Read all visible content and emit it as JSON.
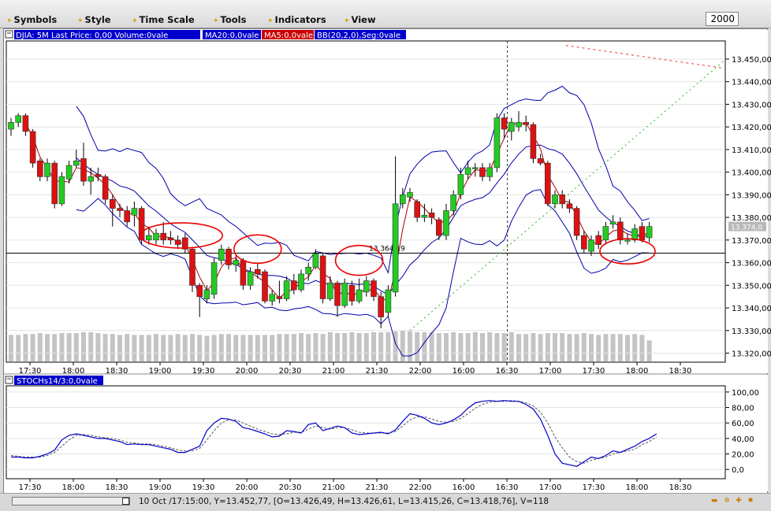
{
  "toolbar": {
    "menus": [
      "Symbols",
      "Style",
      "Time Scale",
      "Tools",
      "Indicators",
      "View"
    ],
    "zoom_value": "2000"
  },
  "price_panel": {
    "legend": [
      {
        "text": "DJIA: 5M Last Price: 0,00 Volume:0vale",
        "color": "#0000cc",
        "bg": "#0000cc"
      },
      {
        "text": "MA20:0,0vale",
        "color": "#0000cc",
        "bg": "#0000cc"
      },
      {
        "text": "MA5:0,0vale",
        "color": "#cc0000",
        "bg": "#cc0000"
      },
      {
        "text": "BB(20,2,0),Seg:0vale",
        "color": "#0000cc",
        "bg": "#0000cc"
      }
    ],
    "level_label": "13.364,19",
    "last_price_tag": "13.374,0"
  },
  "stoch_panel": {
    "legend": "STOCHs14/3:0,0vale"
  },
  "status": {
    "text": "10 Oct /17:15:00, Y=13.452,77, [O=13.426,49, H=13.426,61, L=13.415,26, C=13.418,76], V=118"
  },
  "colors": {
    "up": "#22cc22",
    "down": "#dd1111",
    "bollinger": "#0000aa",
    "ma_fast": "#aa0000",
    "stoch_k": "#0000cc",
    "stoch_d": "#555555",
    "volume": "#c4c4c4",
    "annotation": "#ee0000"
  },
  "chart_data": [
    {
      "type": "candlestick",
      "title": "DJIA: 5M",
      "x_tick_labels": [
        "17:30",
        "18:00",
        "18:30",
        "19:00",
        "19:30",
        "20:00",
        "20:30",
        "21:00",
        "21:30",
        "22:00",
        "16:00",
        "16:30",
        "17:00",
        "17:30",
        "18:00",
        "18:30"
      ],
      "y_tick_labels": [
        "13.450,00",
        "13.440,00",
        "13.430,00",
        "13.420,00",
        "13.410,00",
        "13.400,00",
        "13.390,00",
        "13.380,00",
        "13.370,00",
        "13.360,00",
        "13.350,00",
        "13.340,00",
        "13.330,00",
        "13.320,00"
      ],
      "ylim": [
        13316,
        13458
      ],
      "horizontal_level": 13364.19,
      "session_break_index": 68,
      "candles": [
        {
          "o": 13419,
          "c": 13422,
          "h": 13424,
          "l": 13416
        },
        {
          "o": 13422,
          "c": 13425,
          "h": 13426,
          "l": 13420
        },
        {
          "o": 13425,
          "c": 13418,
          "h": 13426,
          "l": 13416
        },
        {
          "o": 13418,
          "c": 13404,
          "h": 13419,
          "l": 13402
        },
        {
          "o": 13405,
          "c": 13398,
          "h": 13406,
          "l": 13396
        },
        {
          "o": 13398,
          "c": 13404,
          "h": 13406,
          "l": 13396
        },
        {
          "o": 13404,
          "c": 13386,
          "h": 13405,
          "l": 13384
        },
        {
          "o": 13386,
          "c": 13398,
          "h": 13400,
          "l": 13385
        },
        {
          "o": 13397,
          "c": 13403,
          "h": 13405,
          "l": 13395
        },
        {
          "o": 13403,
          "c": 13405,
          "h": 13410,
          "l": 13402
        },
        {
          "o": 13406,
          "c": 13396,
          "h": 13413,
          "l": 13394
        },
        {
          "o": 13396,
          "c": 13398,
          "h": 13402,
          "l": 13390
        },
        {
          "o": 13399,
          "c": 13398,
          "h": 13402,
          "l": 13396
        },
        {
          "o": 13398,
          "c": 13388,
          "h": 13399,
          "l": 13386
        },
        {
          "o": 13388,
          "c": 13384,
          "h": 13390,
          "l": 13376
        },
        {
          "o": 13384,
          "c": 13383,
          "h": 13386,
          "l": 13380
        },
        {
          "o": 13383,
          "c": 13378,
          "h": 13385,
          "l": 13376
        },
        {
          "o": 13381,
          "c": 13384,
          "h": 13387,
          "l": 13376
        },
        {
          "o": 13384,
          "c": 13370,
          "h": 13385,
          "l": 13368
        },
        {
          "o": 13370,
          "c": 13372,
          "h": 13376,
          "l": 13368
        },
        {
          "o": 13370,
          "c": 13373,
          "h": 13375,
          "l": 13368
        },
        {
          "o": 13373,
          "c": 13370,
          "h": 13378,
          "l": 13368
        },
        {
          "o": 13371,
          "c": 13370,
          "h": 13374,
          "l": 13368
        },
        {
          "o": 13370,
          "c": 13368,
          "h": 13372,
          "l": 13366
        },
        {
          "o": 13371,
          "c": 13366,
          "h": 13373,
          "l": 13364
        },
        {
          "o": 13366,
          "c": 13350,
          "h": 13367,
          "l": 13347
        },
        {
          "o": 13350,
          "c": 13345,
          "h": 13351,
          "l": 13336
        },
        {
          "o": 13344,
          "c": 13348,
          "h": 13350,
          "l": 13342
        },
        {
          "o": 13346,
          "c": 13360,
          "h": 13362,
          "l": 13344
        },
        {
          "o": 13361,
          "c": 13366,
          "h": 13368,
          "l": 13359
        },
        {
          "o": 13366,
          "c": 13359,
          "h": 13367,
          "l": 13357
        },
        {
          "o": 13359,
          "c": 13361,
          "h": 13363,
          "l": 13356
        },
        {
          "o": 13361,
          "c": 13350,
          "h": 13362,
          "l": 13348
        },
        {
          "o": 13350,
          "c": 13356,
          "h": 13358,
          "l": 13348
        },
        {
          "o": 13357,
          "c": 13355,
          "h": 13360,
          "l": 13353
        },
        {
          "o": 13356,
          "c": 13343,
          "h": 13357,
          "l": 13342
        },
        {
          "o": 13343,
          "c": 13346,
          "h": 13348,
          "l": 13341
        },
        {
          "o": 13345,
          "c": 13344,
          "h": 13352,
          "l": 13342
        },
        {
          "o": 13344,
          "c": 13352,
          "h": 13354,
          "l": 13343
        },
        {
          "o": 13352,
          "c": 13348,
          "h": 13355,
          "l": 13346
        },
        {
          "o": 13348,
          "c": 13355,
          "h": 13357,
          "l": 13347
        },
        {
          "o": 13355,
          "c": 13358,
          "h": 13360,
          "l": 13352
        },
        {
          "o": 13358,
          "c": 13364,
          "h": 13366,
          "l": 13357
        },
        {
          "o": 13363,
          "c": 13344,
          "h": 13364,
          "l": 13342
        },
        {
          "o": 13344,
          "c": 13351,
          "h": 13354,
          "l": 13343
        },
        {
          "o": 13351,
          "c": 13341,
          "h": 13352,
          "l": 13336
        },
        {
          "o": 13341,
          "c": 13351,
          "h": 13353,
          "l": 13340
        },
        {
          "o": 13350,
          "c": 13343,
          "h": 13352,
          "l": 13341
        },
        {
          "o": 13343,
          "c": 13348,
          "h": 13353,
          "l": 13342
        },
        {
          "o": 13347,
          "c": 13352,
          "h": 13354,
          "l": 13345
        },
        {
          "o": 13352,
          "c": 13345,
          "h": 13353,
          "l": 13343
        },
        {
          "o": 13345,
          "c": 13336,
          "h": 13347,
          "l": 13331
        },
        {
          "o": 13338,
          "c": 13348,
          "h": 13350,
          "l": 13336
        },
        {
          "o": 13347,
          "c": 13386,
          "h": 13407,
          "l": 13345
        },
        {
          "o": 13386,
          "c": 13390,
          "h": 13393,
          "l": 13384
        },
        {
          "o": 13389,
          "c": 13391,
          "h": 13393,
          "l": 13387
        },
        {
          "o": 13387,
          "c": 13380,
          "h": 13388,
          "l": 13378
        },
        {
          "o": 13380,
          "c": 13381,
          "h": 13386,
          "l": 13378
        },
        {
          "o": 13382,
          "c": 13380,
          "h": 13384,
          "l": 13377
        },
        {
          "o": 13379,
          "c": 13372,
          "h": 13380,
          "l": 13370
        },
        {
          "o": 13372,
          "c": 13383,
          "h": 13386,
          "l": 13370
        },
        {
          "o": 13383,
          "c": 13390,
          "h": 13392,
          "l": 13381
        },
        {
          "o": 13390,
          "c": 13399,
          "h": 13402,
          "l": 13388
        },
        {
          "o": 13399,
          "c": 13402,
          "h": 13405,
          "l": 13397
        },
        {
          "o": 13402,
          "c": 13402,
          "h": 13404,
          "l": 13398
        },
        {
          "o": 13402,
          "c": 13398,
          "h": 13404,
          "l": 13396
        },
        {
          "o": 13398,
          "c": 13402,
          "h": 13404,
          "l": 13396
        },
        {
          "o": 13402,
          "c": 13424,
          "h": 13426,
          "l": 13400
        },
        {
          "o": 13424,
          "c": 13419,
          "h": 13426,
          "l": 13415
        },
        {
          "o": 13418,
          "c": 13422,
          "h": 13424,
          "l": 13414
        },
        {
          "o": 13420,
          "c": 13422,
          "h": 13427,
          "l": 13418
        },
        {
          "o": 13422,
          "c": 13421,
          "h": 13425,
          "l": 13418
        },
        {
          "o": 13421,
          "c": 13406,
          "h": 13422,
          "l": 13404
        },
        {
          "o": 13406,
          "c": 13404,
          "h": 13408,
          "l": 13403
        },
        {
          "o": 13404,
          "c": 13386,
          "h": 13405,
          "l": 13385
        },
        {
          "o": 13386,
          "c": 13390,
          "h": 13392,
          "l": 13384
        },
        {
          "o": 13390,
          "c": 13386,
          "h": 13392,
          "l": 13384
        },
        {
          "o": 13386,
          "c": 13384,
          "h": 13388,
          "l": 13382
        },
        {
          "o": 13384,
          "c": 13372,
          "h": 13385,
          "l": 13370
        },
        {
          "o": 13372,
          "c": 13366,
          "h": 13374,
          "l": 13364
        },
        {
          "o": 13365,
          "c": 13370,
          "h": 13372,
          "l": 13363
        },
        {
          "o": 13372,
          "c": 13368,
          "h": 13374,
          "l": 13366
        },
        {
          "o": 13370,
          "c": 13376,
          "h": 13378,
          "l": 13368
        },
        {
          "o": 13377,
          "c": 13378,
          "h": 13381,
          "l": 13375
        },
        {
          "o": 13378,
          "c": 13370,
          "h": 13380,
          "l": 13368
        },
        {
          "o": 13370,
          "c": 13370,
          "h": 13373,
          "l": 13368
        },
        {
          "o": 13370,
          "c": 13375,
          "h": 13377,
          "l": 13369
        },
        {
          "o": 13376,
          "c": 13370,
          "h": 13378,
          "l": 13369
        },
        {
          "o": 13371,
          "c": 13376,
          "h": 13378,
          "l": 13369
        }
      ],
      "volume": [
        0.58,
        0.58,
        0.6,
        0.6,
        0.62,
        0.6,
        0.6,
        0.62,
        0.62,
        0.62,
        0.64,
        0.64,
        0.62,
        0.6,
        0.6,
        0.58,
        0.6,
        0.58,
        0.58,
        0.58,
        0.6,
        0.58,
        0.58,
        0.6,
        0.58,
        0.6,
        0.58,
        0.56,
        0.58,
        0.6,
        0.6,
        0.58,
        0.58,
        0.58,
        0.58,
        0.58,
        0.58,
        0.6,
        0.6,
        0.6,
        0.62,
        0.6,
        0.62,
        0.6,
        0.64,
        0.62,
        0.62,
        0.64,
        0.62,
        0.62,
        0.64,
        0.64,
        0.64,
        0.66,
        0.68,
        0.66,
        0.64,
        0.64,
        0.64,
        0.62,
        0.62,
        0.64,
        0.62,
        0.62,
        0.64,
        0.62,
        0.64,
        0.62,
        0.62,
        0.64,
        0.6,
        0.6,
        0.62,
        0.6,
        0.62,
        0.62,
        0.62,
        0.6,
        0.6,
        0.62,
        0.6,
        0.58,
        0.6,
        0.6,
        0.6,
        0.58,
        0.6,
        0.58,
        0.46
      ]
    },
    {
      "type": "line",
      "title": "STOCHs14/3",
      "x_tick_labels": [
        "17:30",
        "18:00",
        "18:30",
        "19:00",
        "19:30",
        "20:00",
        "20:30",
        "21:00",
        "21:30",
        "22:00",
        "16:00",
        "16:30",
        "17:00",
        "17:30",
        "18:00",
        "18:30"
      ],
      "y_tick_labels": [
        "100,00",
        "80,00",
        "60,00",
        "40,00",
        "20,00",
        "0,0"
      ],
      "ylim": [
        -12,
        108
      ],
      "series": [
        {
          "values": [
            16,
            16,
            15,
            15,
            17,
            20,
            25,
            38,
            44,
            46,
            44,
            42,
            40,
            40,
            38,
            36,
            32,
            33,
            32,
            32,
            30,
            28,
            26,
            22,
            22,
            26,
            30,
            50,
            60,
            66,
            65,
            62,
            54,
            52,
            49,
            46,
            42,
            43,
            50,
            49,
            47,
            58,
            60,
            50,
            53,
            56,
            54,
            47,
            45,
            46,
            47,
            48,
            46,
            51,
            62,
            72,
            70,
            66,
            60,
            58,
            60,
            64,
            70,
            79,
            86,
            88,
            89,
            88,
            89,
            88,
            88,
            84,
            78,
            65,
            44,
            20,
            8,
            6,
            4,
            10,
            16,
            14,
            18,
            24,
            22,
            26,
            30,
            36,
            40,
            46
          ]
        },
        {
          "values": [
            18,
            17,
            16,
            16,
            16,
            18,
            22,
            30,
            38,
            44,
            45,
            44,
            42,
            41,
            40,
            38,
            35,
            34,
            33,
            33,
            32,
            30,
            28,
            25,
            24,
            24,
            27,
            38,
            50,
            60,
            64,
            64,
            60,
            56,
            52,
            49,
            46,
            45,
            46,
            48,
            48,
            52,
            56,
            54,
            52,
            54,
            54,
            51,
            48,
            47,
            47,
            47,
            47,
            49,
            56,
            64,
            68,
            68,
            65,
            62,
            61,
            62,
            66,
            72,
            79,
            84,
            87,
            88,
            88,
            89,
            88,
            86,
            82,
            74,
            60,
            42,
            28,
            16,
            10,
            8,
            12,
            14,
            16,
            20,
            22,
            24,
            26,
            32,
            36,
            42
          ]
        }
      ]
    }
  ]
}
